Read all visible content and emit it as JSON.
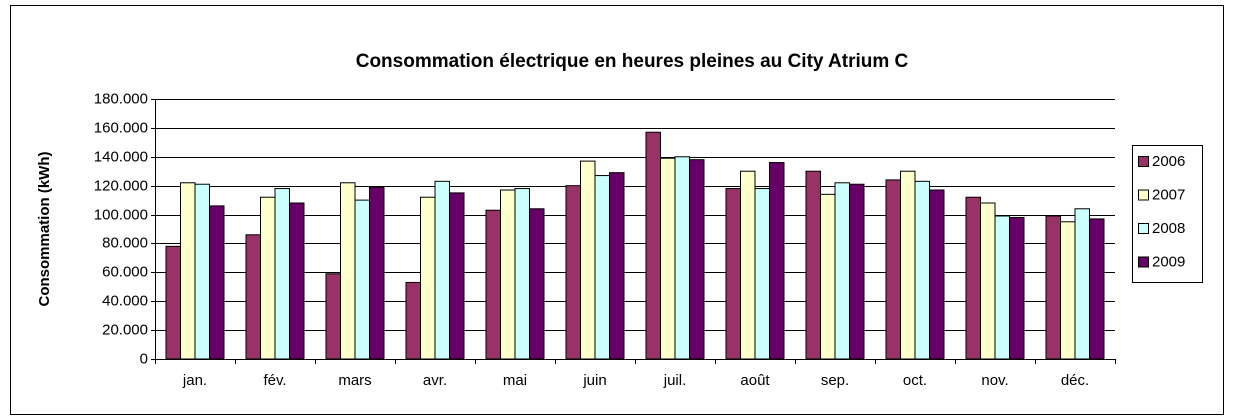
{
  "chart_data": {
    "type": "bar",
    "title": "Consommation électrique en heures pleines au City Atrium C",
    "y_label": "Consommation (kWh)",
    "categories": [
      "jan.",
      "fév.",
      "mars",
      "avr.",
      "mai",
      "juin",
      "juil.",
      "août",
      "sep.",
      "oct.",
      "nov.",
      "déc."
    ],
    "series": [
      {
        "name": "2006",
        "color": "#993366",
        "values": [
          78000,
          86000,
          59000,
          53000,
          103000,
          120000,
          157000,
          118000,
          130000,
          124000,
          112000,
          99000
        ]
      },
      {
        "name": "2007",
        "color": "#ffffcc",
        "values": [
          122000,
          112000,
          122000,
          112000,
          117000,
          137000,
          139000,
          130000,
          114000,
          130000,
          108000,
          95000
        ]
      },
      {
        "name": "2008",
        "color": "#ccffff",
        "values": [
          121000,
          118000,
          110000,
          123000,
          118000,
          127000,
          140000,
          118000,
          122000,
          123000,
          99000,
          104000
        ]
      },
      {
        "name": "2009",
        "color": "#660066",
        "values": [
          106000,
          108000,
          119000,
          115000,
          104000,
          129000,
          138000,
          136000,
          121000,
          117000,
          98000,
          97000
        ]
      }
    ],
    "ylim": [
      0,
      180000
    ],
    "yticks": [
      0,
      {
        "value": 20000,
        "label": "20.000"
      },
      {
        "value": 40000,
        "label": "40.000"
      },
      {
        "value": 60000,
        "label": "60.000"
      },
      {
        "value": 80000,
        "label": "80.000"
      },
      {
        "value": 100000,
        "label": "100.000"
      },
      {
        "value": 120000,
        "label": "120.000"
      },
      {
        "value": 140000,
        "label": "140.000"
      },
      {
        "value": 160000,
        "label": "160.000"
      },
      {
        "value": 180000,
        "label": "180.000"
      }
    ],
    "grid": true,
    "legend": "right"
  }
}
